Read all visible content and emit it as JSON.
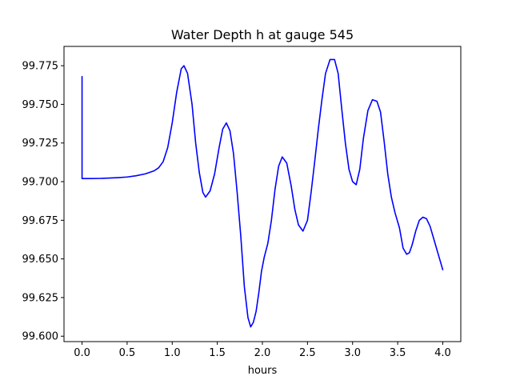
{
  "chart_data": {
    "type": "line",
    "title": "Water Depth h at gauge 545",
    "xlabel": "hours",
    "ylabel": "",
    "xlim": [
      -0.2,
      4.2
    ],
    "ylim": [
      99.5965,
      99.7875
    ],
    "grid": false,
    "x_ticks": [
      0.0,
      0.5,
      1.0,
      1.5,
      2.0,
      2.5,
      3.0,
      3.5,
      4.0
    ],
    "x_tick_labels": [
      "0.0",
      "0.5",
      "1.0",
      "1.5",
      "2.0",
      "2.5",
      "3.0",
      "3.5",
      "4.0"
    ],
    "y_ticks": [
      99.6,
      99.625,
      99.65,
      99.675,
      99.7,
      99.725,
      99.75,
      99.775
    ],
    "y_tick_labels": [
      "99.600",
      "99.625",
      "99.650",
      "99.675",
      "99.700",
      "99.725",
      "99.750",
      "99.775"
    ],
    "series": [
      {
        "color": "#0000ff",
        "x": [
          0.0,
          0.0,
          0.02,
          0.1,
          0.2,
          0.3,
          0.4,
          0.5,
          0.6,
          0.7,
          0.8,
          0.85,
          0.9,
          0.95,
          1.0,
          1.05,
          1.1,
          1.13,
          1.17,
          1.22,
          1.26,
          1.3,
          1.34,
          1.37,
          1.42,
          1.47,
          1.52,
          1.56,
          1.6,
          1.64,
          1.68,
          1.72,
          1.76,
          1.8,
          1.84,
          1.87,
          1.9,
          1.93,
          1.96,
          1.99,
          2.02,
          2.06,
          2.1,
          2.14,
          2.18,
          2.22,
          2.27,
          2.32,
          2.36,
          2.4,
          2.45,
          2.5,
          2.54,
          2.58,
          2.62,
          2.66,
          2.7,
          2.75,
          2.8,
          2.84,
          2.88,
          2.92,
          2.96,
          3.0,
          3.04,
          3.08,
          3.12,
          3.17,
          3.22,
          3.27,
          3.31,
          3.35,
          3.39,
          3.43,
          3.47,
          3.52,
          3.56,
          3.6,
          3.63,
          3.66,
          3.7,
          3.74,
          3.78,
          3.82,
          3.86,
          3.9,
          3.94,
          3.97,
          4.0
        ],
        "y": [
          99.768,
          99.702,
          99.702,
          99.702,
          99.7021,
          99.7023,
          99.7026,
          99.703,
          99.7038,
          99.705,
          99.707,
          99.709,
          99.713,
          99.722,
          99.738,
          99.758,
          99.773,
          99.775,
          99.77,
          99.75,
          99.725,
          99.706,
          99.693,
          99.69,
          99.694,
          99.705,
          99.722,
          99.734,
          99.738,
          99.733,
          99.718,
          99.693,
          99.665,
          99.632,
          99.612,
          99.606,
          99.609,
          99.616,
          99.628,
          99.642,
          99.651,
          99.66,
          99.675,
          99.695,
          99.71,
          99.716,
          99.712,
          99.697,
          99.682,
          99.672,
          99.668,
          99.675,
          99.693,
          99.713,
          99.734,
          99.753,
          99.77,
          99.779,
          99.779,
          99.77,
          99.747,
          99.725,
          99.708,
          99.7,
          99.698,
          99.708,
          99.728,
          99.746,
          99.753,
          99.752,
          99.745,
          99.726,
          99.705,
          99.69,
          99.68,
          99.67,
          99.657,
          99.653,
          99.654,
          99.659,
          99.668,
          99.675,
          99.677,
          99.676,
          99.671,
          99.663,
          99.655,
          99.649,
          99.643
        ]
      }
    ]
  }
}
